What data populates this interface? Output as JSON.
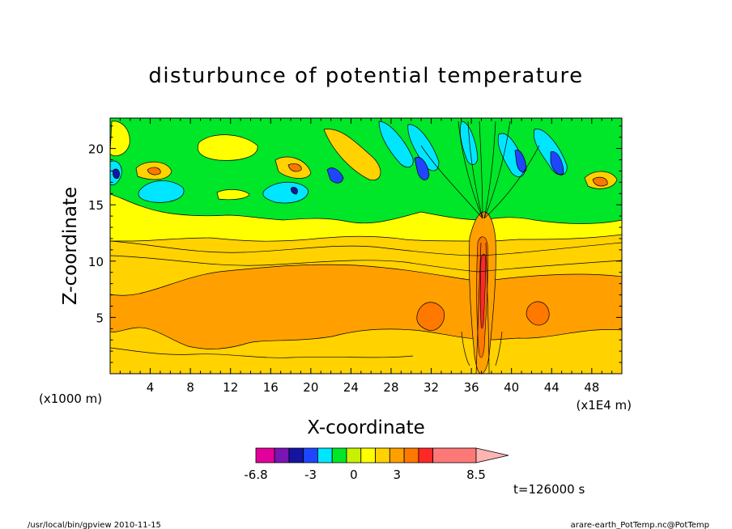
{
  "chart_data": {
    "type": "heatmap",
    "title": "disturbunce of potential temperature",
    "xlabel": "X-coordinate",
    "ylabel": "Z-coordinate",
    "x_unit_left": "(x1000 m)",
    "x_unit_right": "(x1E4 m)",
    "x_ticks": [
      4,
      8,
      12,
      16,
      20,
      24,
      28,
      32,
      36,
      40,
      44,
      48
    ],
    "y_ticks": [
      5,
      10,
      15,
      20
    ],
    "xlim": [
      0,
      51
    ],
    "ylim": [
      0,
      22.7
    ],
    "time_label": "t=126000 s",
    "colorbar": {
      "labels": [
        "-6.8",
        "-3",
        "0",
        "3",
        "8.5"
      ],
      "label_values": [
        -6.8,
        -3,
        0,
        3,
        8.5
      ],
      "colors": [
        "#e4009a",
        "#7a14b4",
        "#1414a0",
        "#1e46ff",
        "#00e6ff",
        "#00e628",
        "#c8f000",
        "#ffff00",
        "#ffd200",
        "#ffa000",
        "#ff7800",
        "#ff2828",
        "#ff7878",
        "#ffb4b4"
      ],
      "bounds": [
        -6.8,
        -5.5,
        -4.5,
        -3.5,
        -2.5,
        -1.5,
        -0.5,
        0.5,
        1.5,
        2.5,
        3.5,
        4.5,
        5.5,
        8.5,
        10
      ]
    },
    "grid": false
  },
  "footer": {
    "left": "/usr/local/bin/gpview  2010-11-15",
    "right": "arare-earth_PotTemp.nc@PotTemp"
  }
}
